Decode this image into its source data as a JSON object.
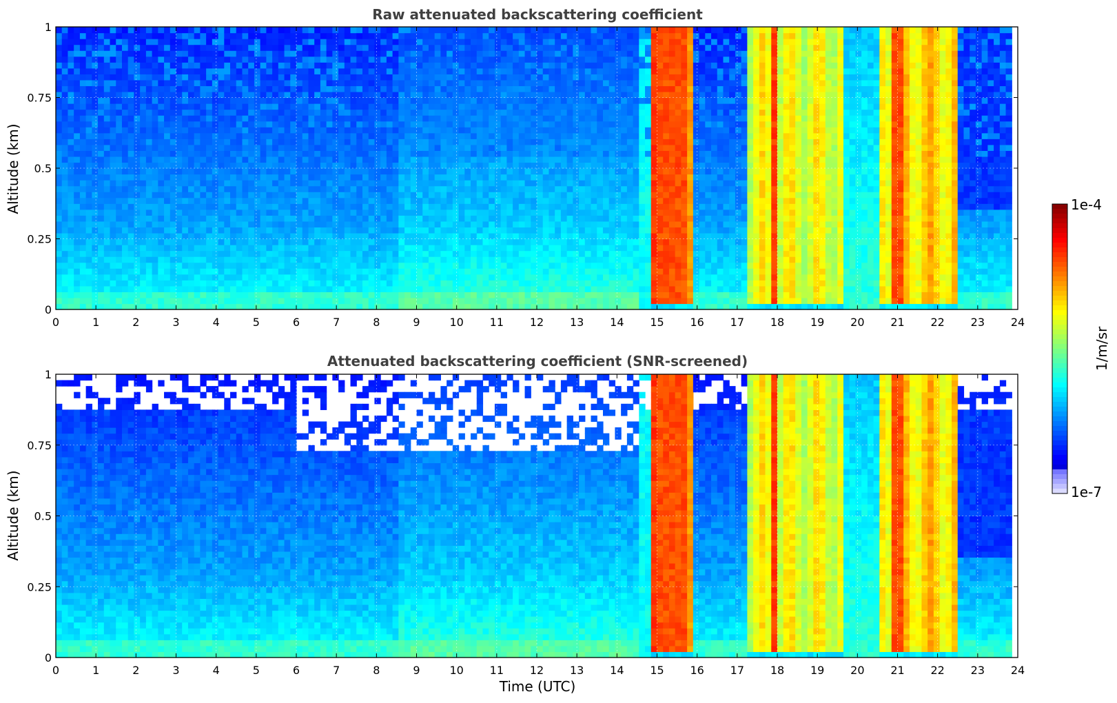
{
  "chart_data": [
    {
      "type": "heatmap",
      "title": "Raw attenuated backscattering coefficient",
      "xlabel": "",
      "ylabel": "Altitude (km)",
      "xlim": [
        0,
        24
      ],
      "ylim": [
        0,
        1
      ],
      "x_ticks": [
        "0",
        "1",
        "2",
        "3",
        "4",
        "5",
        "6",
        "7",
        "8",
        "9",
        "10",
        "11",
        "12",
        "13",
        "14",
        "15",
        "16",
        "17",
        "18",
        "19",
        "20",
        "21",
        "22",
        "23",
        "24"
      ],
      "y_ticks": [
        "0",
        "0.25",
        "0.5",
        "0.75",
        "1"
      ],
      "grid": true,
      "screened": false,
      "log10_value_by_time": [
        {
          "t_start": 0,
          "t_end": 14.7,
          "value": "-6.2"
        },
        {
          "t_start": 14.9,
          "t_end": 15.9,
          "value": "-4.3"
        },
        {
          "t_start": 15.9,
          "t_end": 17.2,
          "value": "-6.3"
        },
        {
          "t_start": 17.2,
          "t_end": 19.7,
          "value": "-4.9"
        },
        {
          "t_start": 19.7,
          "t_end": 20.5,
          "value": "-5.6"
        },
        {
          "t_start": 20.5,
          "t_end": 22.5,
          "value": "-4.6"
        },
        {
          "t_start": 22.5,
          "t_end": 23.8,
          "value": "-6.0"
        }
      ]
    },
    {
      "type": "heatmap",
      "title": "Attenuated backscattering coefficient (SNR-screened)",
      "xlabel": "Time (UTC)",
      "ylabel": "Altitude (km)",
      "xlim": [
        0,
        24
      ],
      "ylim": [
        0,
        1
      ],
      "x_ticks": [
        "0",
        "1",
        "2",
        "3",
        "4",
        "5",
        "6",
        "7",
        "8",
        "9",
        "10",
        "11",
        "12",
        "13",
        "14",
        "15",
        "16",
        "17",
        "18",
        "19",
        "20",
        "21",
        "22",
        "23",
        "24"
      ],
      "y_ticks": [
        "0",
        "0.25",
        "0.5",
        "0.75",
        "1"
      ],
      "grid": true,
      "screened": true
    }
  ],
  "colorbar": {
    "colormap": "jet",
    "scale": "log",
    "max_label": "1e-4",
    "min_label": "1e-7",
    "unit_label": "1/m/sr"
  }
}
